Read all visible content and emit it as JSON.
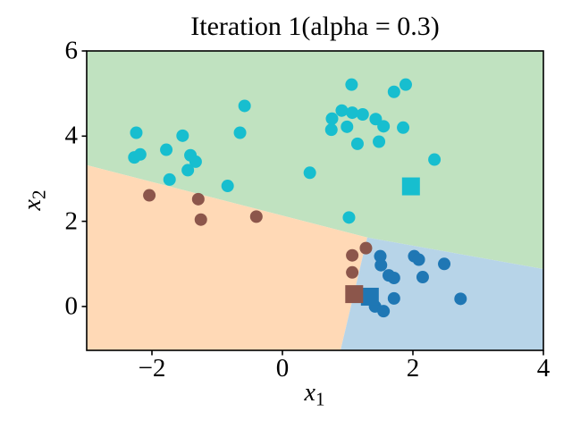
{
  "title": "Iteration 1(alpha = 0.3)",
  "x_axis": {
    "base": "x",
    "sub": "1"
  },
  "y_axis": {
    "base": "x",
    "sub": "2"
  },
  "colors": {
    "region_green": "#c0e2c0",
    "region_orange": "#ffd9b6",
    "region_blue": "#b7d4e8",
    "cluster_cyan": "#17becf",
    "cluster_brown": "#8c564b",
    "cluster_blue": "#1f77b4",
    "axis": "#000000"
  },
  "chart_data": {
    "type": "scatter",
    "title": "Iteration 1(alpha = 0.3)",
    "xlabel": "x_1",
    "ylabel": "x_2",
    "xlim": [
      -3,
      4
    ],
    "ylim": [
      -1.03,
      6
    ],
    "xticks": [
      -2,
      0,
      2,
      4
    ],
    "yticks": [
      0,
      2,
      4,
      6
    ],
    "xtick_labels": [
      "−2",
      "0",
      "2",
      "4"
    ],
    "ytick_labels": [
      "0",
      "2",
      "4",
      "6"
    ],
    "grid": false,
    "legend": null,
    "regions": [
      {
        "name": "green",
        "color": "#c0e2c0",
        "polygon": [
          [
            -3,
            6
          ],
          [
            4,
            6
          ],
          [
            4,
            0.88
          ],
          [
            1.3,
            1.62
          ],
          [
            -3,
            3.32
          ]
        ]
      },
      {
        "name": "orange",
        "color": "#ffd9b6",
        "polygon": [
          [
            -3,
            3.32
          ],
          [
            1.3,
            1.62
          ],
          [
            0.89,
            -1.03
          ],
          [
            -3,
            -1.03
          ]
        ]
      },
      {
        "name": "blue",
        "color": "#b7d4e8",
        "polygon": [
          [
            1.3,
            1.62
          ],
          [
            4,
            0.88
          ],
          [
            4,
            -1.03
          ],
          [
            0.89,
            -1.03
          ]
        ]
      }
    ],
    "series": [
      {
        "name": "cluster-cyan-points",
        "marker": "circle",
        "size": 14,
        "color": "#17becf",
        "points": [
          [
            -2.24,
            4.08
          ],
          [
            -1.53,
            4.01
          ],
          [
            -0.65,
            4.08
          ],
          [
            -0.58,
            4.71
          ],
          [
            -1.78,
            3.68
          ],
          [
            -2.27,
            3.5
          ],
          [
            -2.18,
            3.57
          ],
          [
            -1.41,
            3.55
          ],
          [
            -1.33,
            3.4
          ],
          [
            -1.45,
            3.2
          ],
          [
            -1.73,
            2.98
          ],
          [
            -0.84,
            2.83
          ],
          [
            1.06,
            5.21
          ],
          [
            1.71,
            5.04
          ],
          [
            1.89,
            5.21
          ],
          [
            0.91,
            4.6
          ],
          [
            1.07,
            4.55
          ],
          [
            1.23,
            4.51
          ],
          [
            0.76,
            4.41
          ],
          [
            1.43,
            4.4
          ],
          [
            0.75,
            4.15
          ],
          [
            0.99,
            4.22
          ],
          [
            1.55,
            4.23
          ],
          [
            1.85,
            4.2
          ],
          [
            1.15,
            3.82
          ],
          [
            1.48,
            3.87
          ],
          [
            2.33,
            3.45
          ],
          [
            0.42,
            3.14
          ],
          [
            1.02,
            2.09
          ]
        ]
      },
      {
        "name": "cluster-brown-points",
        "marker": "circle",
        "size": 14,
        "color": "#8c564b",
        "points": [
          [
            -2.04,
            2.61
          ],
          [
            -1.29,
            2.52
          ],
          [
            -0.4,
            2.11
          ],
          [
            -1.25,
            2.04
          ],
          [
            1.28,
            1.37
          ],
          [
            1.07,
            1.2
          ],
          [
            1.07,
            0.8
          ]
        ]
      },
      {
        "name": "cluster-blue-points",
        "marker": "circle",
        "size": 14,
        "color": "#1f77b4",
        "points": [
          [
            1.5,
            1.18
          ],
          [
            1.51,
            0.97
          ],
          [
            2.02,
            1.18
          ],
          [
            2.09,
            1.1
          ],
          [
            2.48,
            1.0
          ],
          [
            1.63,
            0.73
          ],
          [
            1.71,
            0.67
          ],
          [
            2.15,
            0.69
          ],
          [
            1.71,
            0.19
          ],
          [
            2.73,
            0.18
          ],
          [
            1.42,
            0.0
          ],
          [
            1.55,
            -0.11
          ]
        ]
      },
      {
        "name": "centroid-cyan",
        "marker": "square",
        "size": 20,
        "color": "#17becf",
        "points": [
          [
            1.97,
            2.82
          ]
        ]
      },
      {
        "name": "centroid-blue",
        "marker": "square",
        "size": 20,
        "color": "#1f77b4",
        "points": [
          [
            1.34,
            0.23
          ]
        ]
      },
      {
        "name": "centroid-brown",
        "marker": "square",
        "size": 20,
        "color": "#8c564b",
        "points": [
          [
            1.1,
            0.29
          ]
        ]
      }
    ]
  }
}
